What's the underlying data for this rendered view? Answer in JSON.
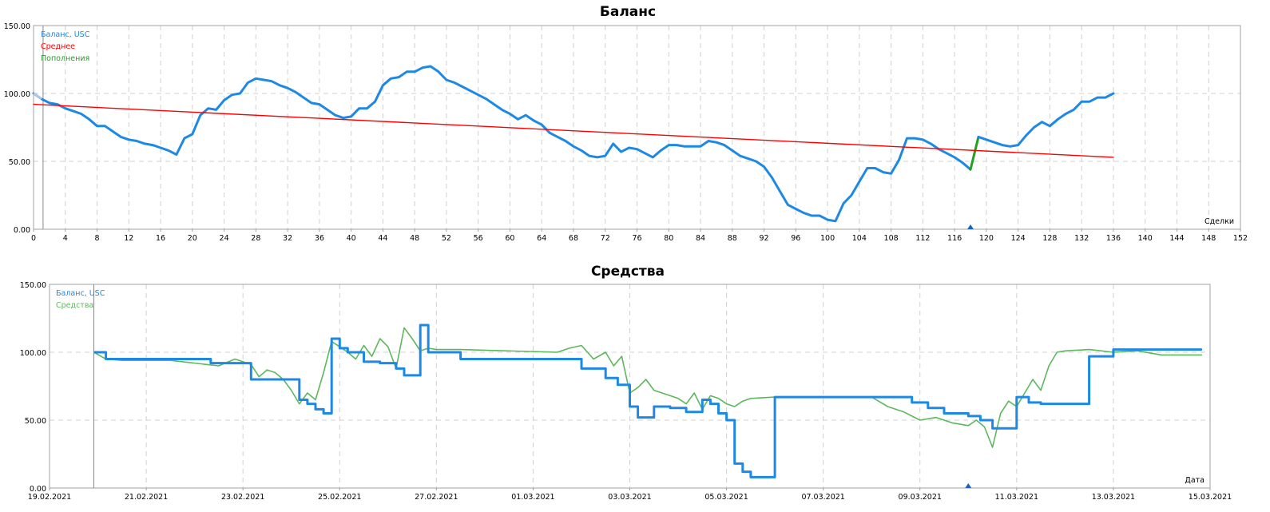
{
  "colors": {
    "balance": "#1e88e5",
    "average": "#ff0000",
    "deposit": "#22a022",
    "equity": "#5cb85c",
    "grid": "#d0d0d0",
    "frame": "#a0a0a0"
  },
  "chart_data": [
    {
      "type": "line",
      "title": "Баланс",
      "xlabel": "Сделки",
      "ylabel": "",
      "xlim": [
        0,
        152
      ],
      "ylim": [
        0,
        150
      ],
      "grid": true,
      "legend_position": "top-left",
      "x_ticks": [
        "0",
        "4",
        "8",
        "12",
        "16",
        "20",
        "24",
        "28",
        "32",
        "36",
        "40",
        "44",
        "48",
        "52",
        "56",
        "60",
        "64",
        "68",
        "72",
        "76",
        "80",
        "84",
        "88",
        "92",
        "96",
        "100",
        "104",
        "108",
        "112",
        "116",
        "120",
        "124",
        "128",
        "132",
        "136",
        "140",
        "144",
        "148",
        "152"
      ],
      "y_ticks": [
        "0.00",
        "50.00",
        "100.00",
        "150.00"
      ],
      "legend": [
        "Баланс, USC",
        "Среднее",
        "Пополнения"
      ],
      "series": [
        {
          "name": "Баланс, USC",
          "x": [
            0,
            1,
            2,
            3,
            4,
            5,
            6,
            7,
            8,
            9,
            10,
            11,
            12,
            13,
            14,
            15,
            16,
            17,
            18,
            19,
            20,
            21,
            22,
            23,
            24,
            25,
            26,
            27,
            28,
            29,
            30,
            31,
            32,
            33,
            34,
            35,
            36,
            37,
            38,
            39,
            40,
            41,
            42,
            43,
            44,
            45,
            46,
            47,
            48,
            49,
            50,
            51,
            52,
            53,
            54,
            55,
            56,
            57,
            58,
            59,
            60,
            61,
            62,
            63,
            64,
            65,
            66,
            67,
            68,
            69,
            70,
            71,
            72,
            73,
            74,
            75,
            76,
            77,
            78,
            79,
            80,
            81,
            82,
            83,
            84,
            85,
            86,
            87,
            88,
            89,
            90,
            91,
            92,
            93,
            94,
            95,
            96,
            97,
            98,
            99,
            100,
            101,
            102,
            103,
            104,
            105,
            106,
            107,
            108,
            109,
            110,
            111,
            112,
            113,
            114,
            115,
            116,
            117,
            118
          ],
          "values": [
            100,
            96,
            93,
            92,
            89,
            87,
            85,
            81,
            76,
            76,
            72,
            68,
            66,
            65,
            63,
            62,
            60,
            58,
            55,
            67,
            70,
            84,
            89,
            88,
            95,
            99,
            100,
            108,
            111,
            110,
            109,
            106,
            104,
            101,
            97,
            93,
            92,
            88,
            84,
            82,
            83,
            89,
            89,
            94,
            106,
            111,
            112,
            116,
            116,
            119,
            120,
            116,
            110,
            108,
            105,
            102,
            99,
            96,
            92,
            88,
            85,
            81,
            84,
            80,
            77,
            71,
            68,
            65,
            61,
            58,
            54,
            53,
            54,
            63,
            57,
            60,
            59,
            56,
            53,
            58,
            62,
            62,
            61,
            61,
            61,
            65,
            64,
            62,
            58,
            54,
            52,
            50,
            46,
            38,
            28,
            18,
            15,
            12,
            10,
            10,
            7,
            6,
            19,
            25,
            35,
            45,
            45,
            42,
            41,
            51,
            67,
            67,
            66,
            63,
            59,
            56,
            53,
            49,
            44
          ]
        },
        {
          "name": "Пополнения",
          "x": [
            118,
            119
          ],
          "values": [
            44,
            68
          ]
        },
        {
          "name": "Баланс, USC",
          "x": [
            119,
            120,
            121,
            122,
            123,
            124,
            125,
            126,
            127,
            128,
            129,
            130,
            131,
            132,
            133,
            134,
            135,
            136
          ],
          "values": [
            68,
            66,
            64,
            62,
            61,
            62,
            69,
            75,
            79,
            76,
            81,
            85,
            88,
            94,
            94,
            97,
            97,
            100
          ]
        },
        {
          "name": "Среднее",
          "x": [
            0,
            136
          ],
          "values": [
            92,
            53
          ]
        }
      ],
      "markers": [
        {
          "x": 118,
          "shape": "triangle"
        }
      ]
    },
    {
      "type": "line",
      "title": "Средства",
      "xlabel": "Дата",
      "ylabel": "",
      "ylim": [
        0,
        150
      ],
      "grid": true,
      "legend_position": "top-left",
      "x_ticks": [
        "19.02.2021",
        "21.02.2021",
        "23.02.2021",
        "25.02.2021",
        "27.02.2021",
        "01.03.2021",
        "03.03.2021",
        "05.03.2021",
        "07.03.2021",
        "09.03.2021",
        "11.03.2021",
        "13.03.2021",
        "15.03.2021"
      ],
      "y_ticks": [
        "0.00",
        "50.00",
        "100.00",
        "150.00"
      ],
      "legend": [
        "Баланс, USC",
        "Средства"
      ],
      "series": [
        {
          "name": "Баланс, USC",
          "step": true,
          "x": [
            "19.02.2021 22:00",
            "20.02.2021 04:00",
            "21.02.2021 00:00",
            "22.02.2021 08:00",
            "22.02.2021 16:00",
            "23.02.2021 04:00",
            "23.02.2021 12:00",
            "23.02.2021 20:00",
            "24.02.2021 04:00",
            "24.02.2021 08:00",
            "24.02.2021 12:00",
            "24.02.2021 16:00",
            "24.02.2021 20:00",
            "25.02.2021 00:00",
            "25.02.2021 04:00",
            "25.02.2021 12:00",
            "25.02.2021 20:00",
            "26.02.2021 04:00",
            "26.02.2021 08:00",
            "26.02.2021 16:00",
            "26.02.2021 20:00",
            "27.02.2021 12:00",
            "28.02.2021 00:00",
            "01.03.2021 12:00",
            "02.03.2021 00:00",
            "02.03.2021 12:00",
            "02.03.2021 18:00",
            "03.03.2021 00:00",
            "03.03.2021 04:00",
            "03.03.2021 12:00",
            "03.03.2021 20:00",
            "04.03.2021 04:00",
            "04.03.2021 12:00",
            "04.03.2021 16:00",
            "04.03.2021 20:00",
            "05.03.2021 00:00",
            "05.03.2021 04:00",
            "05.03.2021 08:00",
            "05.03.2021 12:00",
            "06.03.2021 00:00",
            "07.03.2021 00:00",
            "08.03.2021 00:00",
            "08.03.2021 12:00",
            "08.03.2021 20:00",
            "09.03.2021 04:00",
            "09.03.2021 12:00",
            "10.03.2021 00:00",
            "10.03.2021 06:00",
            "10.03.2021 12:00",
            "10.03.2021 20:00",
            "11.03.2021 00:00",
            "11.03.2021 06:00",
            "11.03.2021 12:00",
            "12.03.2021 00:00",
            "12.03.2021 12:00",
            "13.03.2021 00:00",
            "14.03.2021 00:00",
            "14.03.2021 20:00"
          ],
          "values": [
            100,
            95,
            95,
            92,
            92,
            80,
            80,
            80,
            65,
            62,
            58,
            55,
            110,
            103,
            100,
            93,
            92,
            88,
            83,
            120,
            100,
            95,
            95,
            95,
            88,
            81,
            76,
            60,
            52,
            60,
            59,
            56,
            65,
            62,
            55,
            50,
            18,
            12,
            8,
            67,
            67,
            67,
            67,
            63,
            59,
            55,
            53,
            50,
            44,
            44,
            67,
            63,
            62,
            62,
            97,
            102,
            102,
            102
          ]
        },
        {
          "name": "Средства",
          "x": [
            "19.02.2021 22:00",
            "20.02.2021 04:00",
            "20.02.2021 12:00",
            "21.02.2021 12:00",
            "22.02.2021 12:00",
            "22.02.2021 20:00",
            "23.02.2021 04:00",
            "23.02.2021 08:00",
            "23.02.2021 12:00",
            "23.02.2021 16:00",
            "23.02.2021 20:00",
            "24.02.2021 00:00",
            "24.02.2021 04:00",
            "24.02.2021 08:00",
            "24.02.2021 12:00",
            "24.02.2021 16:00",
            "24.02.2021 20:00",
            "25.02.2021 00:00",
            "25.02.2021 04:00",
            "25.02.2021 08:00",
            "25.02.2021 12:00",
            "25.02.2021 16:00",
            "25.02.2021 20:00",
            "26.02.2021 00:00",
            "26.02.2021 04:00",
            "26.02.2021 08:00",
            "26.02.2021 12:00",
            "26.02.2021 16:00",
            "26.02.2021 20:00",
            "27.02.2021 00:00",
            "27.02.2021 12:00",
            "01.03.2021 12:00",
            "01.03.2021 18:00",
            "02.03.2021 00:00",
            "02.03.2021 06:00",
            "02.03.2021 12:00",
            "02.03.2021 16:00",
            "02.03.2021 20:00",
            "03.03.2021 00:00",
            "03.03.2021 04:00",
            "03.03.2021 08:00",
            "03.03.2021 12:00",
            "03.03.2021 16:00",
            "03.03.2021 20:00",
            "04.03.2021 00:00",
            "04.03.2021 04:00",
            "04.03.2021 08:00",
            "04.03.2021 12:00",
            "04.03.2021 16:00",
            "04.03.2021 20:00",
            "05.03.2021 00:00",
            "05.03.2021 04:00",
            "05.03.2021 08:00",
            "05.03.2021 12:00",
            "06.03.2021 00:00",
            "07.03.2021 00:00",
            "08.03.2021 00:00",
            "08.03.2021 08:00",
            "08.03.2021 16:00",
            "09.03.2021 00:00",
            "09.03.2021 08:00",
            "09.03.2021 16:00",
            "10.03.2021 00:00",
            "10.03.2021 04:00",
            "10.03.2021 08:00",
            "10.03.2021 12:00",
            "10.03.2021 16:00",
            "10.03.2021 20:00",
            "11.03.2021 00:00",
            "11.03.2021 04:00",
            "11.03.2021 08:00",
            "11.03.2021 12:00",
            "11.03.2021 16:00",
            "11.03.2021 20:00",
            "12.03.2021 00:00",
            "12.03.2021 12:00",
            "13.03.2021 00:00",
            "13.03.2021 12:00",
            "14.03.2021 00:00",
            "14.03.2021 20:00"
          ],
          "values": [
            100,
            95,
            94,
            94,
            90,
            95,
            91,
            82,
            87,
            85,
            80,
            72,
            62,
            70,
            65,
            85,
            108,
            104,
            100,
            95,
            105,
            97,
            110,
            104,
            88,
            118,
            110,
            101,
            103,
            102,
            102,
            100,
            103,
            105,
            95,
            100,
            90,
            97,
            70,
            74,
            80,
            72,
            70,
            68,
            66,
            62,
            70,
            58,
            68,
            66,
            62,
            60,
            64,
            66,
            67,
            67,
            67,
            60,
            56,
            50,
            52,
            48,
            46,
            50,
            45,
            30,
            55,
            64,
            60,
            70,
            80,
            72,
            90,
            100,
            101,
            102,
            100,
            101,
            98,
            98
          ]
        }
      ],
      "markers": [
        {
          "x": "10.03.2021 00:00",
          "shape": "triangle"
        }
      ]
    }
  ]
}
